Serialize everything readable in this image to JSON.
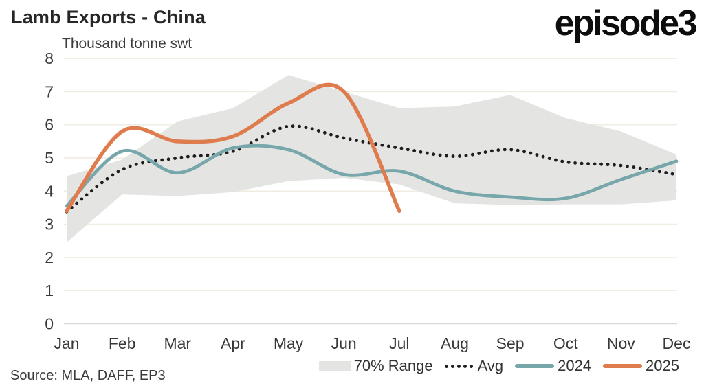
{
  "header": {
    "title": "Lamb Exports - China",
    "subtitle": "Thousand tonne swt",
    "logo": "episode3"
  },
  "legend": {
    "range": "70% Range",
    "avg": "Avg",
    "y2024": "2024",
    "y2025": "2025"
  },
  "footer": {
    "source": "Source: MLA, DAFF, EP3"
  },
  "chart_data": {
    "type": "line",
    "title": "Lamb Exports - China",
    "unit_label": "Thousand tonne swt",
    "categories": [
      "Jan",
      "Feb",
      "Mar",
      "Apr",
      "May",
      "Jun",
      "Jul",
      "Aug",
      "Sep",
      "Oct",
      "Nov",
      "Dec"
    ],
    "ylim": [
      0,
      8
    ],
    "y_ticks": [
      0,
      1,
      2,
      3,
      4,
      5,
      6,
      7,
      8
    ],
    "grid": "horizontal-only",
    "legend_position": "bottom",
    "band": {
      "label": "70% Range",
      "color": "#e4e4e3",
      "top": [
        4.45,
        4.95,
        6.1,
        6.5,
        7.5,
        7.0,
        6.5,
        6.55,
        6.9,
        6.2,
        5.8,
        5.1
      ],
      "bottom": [
        2.45,
        3.9,
        3.85,
        3.97,
        4.3,
        4.4,
        4.2,
        3.63,
        3.58,
        3.6,
        3.6,
        3.72
      ]
    },
    "series": [
      {
        "name": "Avg",
        "style": "dotted",
        "color": "#1e1e1e",
        "values": [
          3.38,
          4.65,
          5.0,
          5.2,
          5.95,
          5.6,
          5.3,
          5.05,
          5.25,
          4.88,
          4.77,
          4.5
        ]
      },
      {
        "name": "2024",
        "style": "solid",
        "color": "#77a7ab",
        "values": [
          3.55,
          5.2,
          4.55,
          5.3,
          5.25,
          4.5,
          4.6,
          4.0,
          3.82,
          3.78,
          4.35,
          4.9
        ]
      },
      {
        "name": "2025",
        "style": "solid",
        "color": "#df7c4e",
        "values": [
          3.4,
          5.8,
          5.5,
          5.65,
          6.65,
          7.0,
          3.4,
          null,
          null,
          null,
          null,
          null
        ]
      }
    ],
    "colors": {
      "gridline": "#f0ece1",
      "zero_axis": "#d8d8d8",
      "tick_text": "#383838",
      "band": "#e4e4e3"
    }
  }
}
